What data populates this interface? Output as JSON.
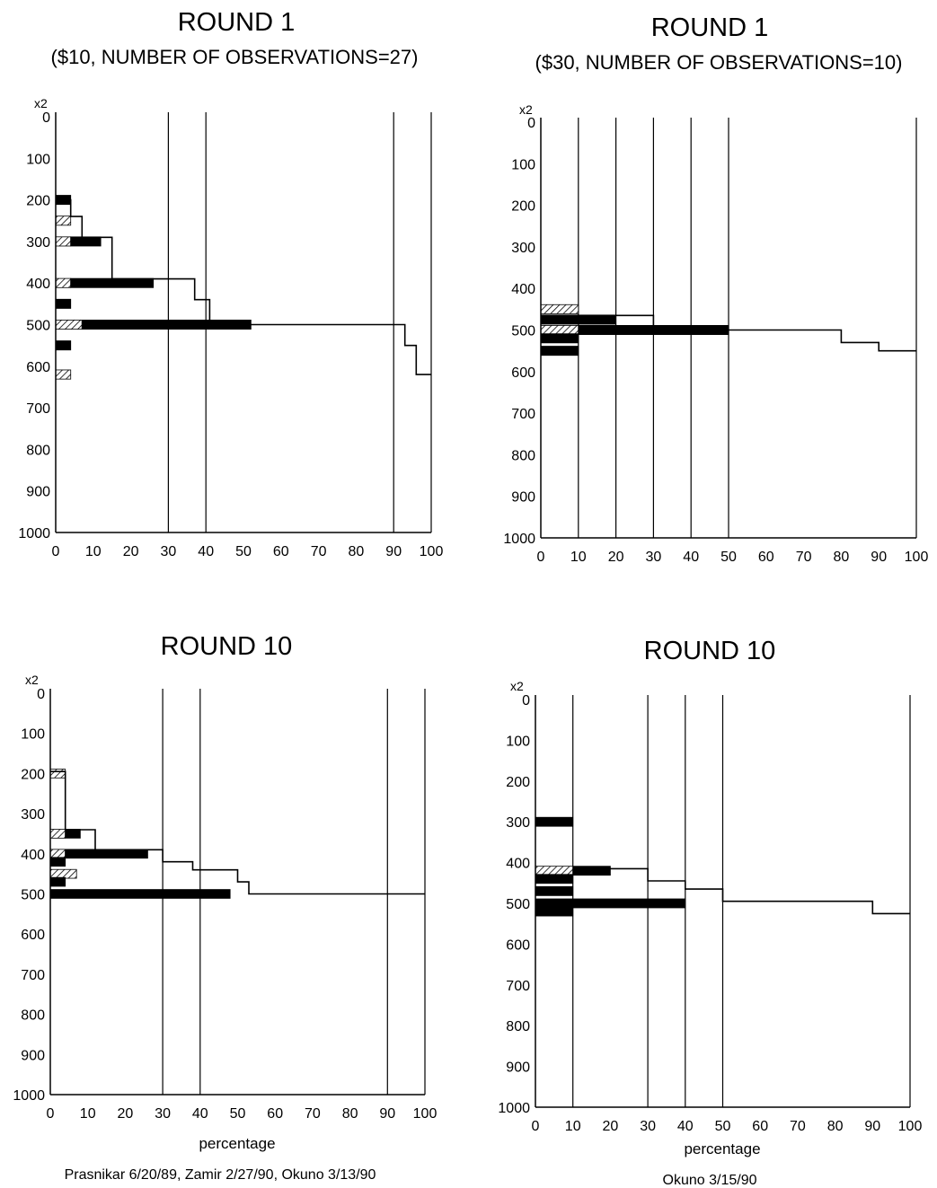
{
  "credits": {
    "left": "Prasnikar 6/20/89, Zamir 2/27/90, Okuno 3/13/90",
    "right": "Okuno 3/15/90"
  },
  "chart_data": [
    {
      "type": "bar",
      "title": "ROUND 1",
      "subtitle": "($10, NUMBER OF OBSERVATIONS=27)",
      "xlabel": "",
      "y_multiplier_label": "x2",
      "x_ticks": [
        "0",
        "10",
        "20",
        "30",
        "40",
        "50",
        "60",
        "70",
        "80",
        "90",
        "100"
      ],
      "y_ticks": [
        "0",
        "100",
        "200",
        "300",
        "400",
        "500",
        "600",
        "700",
        "800",
        "900",
        "1000"
      ],
      "xlim": [
        0,
        100
      ],
      "ylim": [
        0,
        1000
      ],
      "y_inverted": true,
      "vertical_gridlines": [
        30,
        40,
        90,
        100
      ],
      "offer_bars": [
        {
          "y": 200,
          "pct": 4,
          "style": "solid"
        },
        {
          "y": 250,
          "pct": 4,
          "style": "hatched"
        },
        {
          "y": 300,
          "pct": 4,
          "style": "hatched"
        },
        {
          "y": 300,
          "pct": 8,
          "style": "solid",
          "start": 4
        },
        {
          "y": 400,
          "pct": 4,
          "style": "hatched"
        },
        {
          "y": 400,
          "pct": 22,
          "style": "solid",
          "start": 4
        },
        {
          "y": 450,
          "pct": 4,
          "style": "solid"
        },
        {
          "y": 500,
          "pct": 7,
          "style": "hatched"
        },
        {
          "y": 500,
          "pct": 45,
          "style": "solid",
          "start": 7
        },
        {
          "y": 550,
          "pct": 4,
          "style": "solid"
        },
        {
          "y": 620,
          "pct": 4,
          "style": "hatched"
        }
      ],
      "step_line": [
        [
          0,
          200
        ],
        [
          4,
          200
        ],
        [
          4,
          240
        ],
        [
          7,
          240
        ],
        [
          7,
          290
        ],
        [
          15,
          290
        ],
        [
          15,
          390
        ],
        [
          37,
          390
        ],
        [
          37,
          440
        ],
        [
          41,
          440
        ],
        [
          41,
          500
        ],
        [
          93,
          500
        ],
        [
          93,
          550
        ],
        [
          96,
          550
        ],
        [
          96,
          620
        ],
        [
          100,
          620
        ]
      ]
    },
    {
      "type": "bar",
      "title": "ROUND 1",
      "subtitle": "($30, NUMBER OF OBSERVATIONS=10)",
      "xlabel": "",
      "y_multiplier_label": "x2",
      "x_ticks": [
        "0",
        "10",
        "20",
        "30",
        "40",
        "50",
        "60",
        "70",
        "80",
        "90",
        "100"
      ],
      "y_ticks": [
        "0",
        "100",
        "200",
        "300",
        "400",
        "500",
        "600",
        "700",
        "800",
        "900",
        "1000"
      ],
      "xlim": [
        0,
        100
      ],
      "ylim": [
        0,
        1000
      ],
      "y_inverted": true,
      "vertical_gridlines": [
        10,
        20,
        30,
        40,
        50,
        100
      ],
      "offer_bars": [
        {
          "y": 450,
          "pct": 10,
          "style": "hatched"
        },
        {
          "y": 475,
          "pct": 20,
          "style": "solid"
        },
        {
          "y": 500,
          "pct": 10,
          "style": "hatched"
        },
        {
          "y": 500,
          "pct": 40,
          "style": "solid",
          "start": 10
        },
        {
          "y": 520,
          "pct": 10,
          "style": "solid"
        },
        {
          "y": 550,
          "pct": 10,
          "style": "solid"
        }
      ],
      "step_line": [
        [
          10,
          465
        ],
        [
          30,
          465
        ],
        [
          30,
          500
        ],
        [
          80,
          500
        ],
        [
          80,
          530
        ],
        [
          90,
          530
        ],
        [
          90,
          550
        ],
        [
          100,
          550
        ]
      ]
    },
    {
      "type": "bar",
      "title": "ROUND 10",
      "subtitle": "",
      "xlabel": "percentage",
      "y_multiplier_label": "x2",
      "x_ticks": [
        "0",
        "10",
        "20",
        "30",
        "40",
        "50",
        "60",
        "70",
        "80",
        "90",
        "100"
      ],
      "y_ticks": [
        "0",
        "100",
        "200",
        "300",
        "400",
        "500",
        "600",
        "700",
        "800",
        "900",
        "1000"
      ],
      "xlim": [
        0,
        100
      ],
      "ylim": [
        0,
        1000
      ],
      "y_inverted": true,
      "vertical_gridlines": [
        30,
        40,
        90,
        100
      ],
      "offer_bars": [
        {
          "y": 200,
          "pct": 4,
          "style": "hatched"
        },
        {
          "y": 350,
          "pct": 4,
          "style": "hatched"
        },
        {
          "y": 350,
          "pct": 4,
          "style": "solid",
          "start": 4
        },
        {
          "y": 400,
          "pct": 4,
          "style": "hatched"
        },
        {
          "y": 400,
          "pct": 22,
          "style": "solid",
          "start": 4
        },
        {
          "y": 420,
          "pct": 4,
          "style": "solid"
        },
        {
          "y": 450,
          "pct": 7,
          "style": "hatched"
        },
        {
          "y": 470,
          "pct": 4,
          "style": "solid"
        },
        {
          "y": 500,
          "pct": 48,
          "style": "solid"
        }
      ],
      "step_line": [
        [
          0,
          195
        ],
        [
          4,
          195
        ],
        [
          4,
          340
        ],
        [
          12,
          340
        ],
        [
          12,
          390
        ],
        [
          30,
          390
        ],
        [
          30,
          420
        ],
        [
          38,
          420
        ],
        [
          38,
          440
        ],
        [
          50,
          440
        ],
        [
          50,
          470
        ],
        [
          53,
          470
        ],
        [
          53,
          500
        ],
        [
          100,
          500
        ]
      ]
    },
    {
      "type": "bar",
      "title": "ROUND 10",
      "subtitle": "",
      "xlabel": "percentage",
      "y_multiplier_label": "x2",
      "x_ticks": [
        "0",
        "10",
        "20",
        "30",
        "40",
        "50",
        "60",
        "70",
        "80",
        "90",
        "100"
      ],
      "y_ticks": [
        "0",
        "100",
        "200",
        "300",
        "400",
        "500",
        "600",
        "700",
        "800",
        "900",
        "1000"
      ],
      "xlim": [
        0,
        100
      ],
      "ylim": [
        0,
        1000
      ],
      "y_inverted": true,
      "vertical_gridlines": [
        10,
        30,
        40,
        50,
        100
      ],
      "offer_bars": [
        {
          "y": 300,
          "pct": 10,
          "style": "solid"
        },
        {
          "y": 420,
          "pct": 10,
          "style": "hatched"
        },
        {
          "y": 420,
          "pct": 10,
          "style": "solid",
          "start": 10
        },
        {
          "y": 440,
          "pct": 10,
          "style": "solid"
        },
        {
          "y": 470,
          "pct": 10,
          "style": "solid"
        },
        {
          "y": 500,
          "pct": 40,
          "style": "solid"
        },
        {
          "y": 520,
          "pct": 10,
          "style": "solid"
        }
      ],
      "step_line": [
        [
          10,
          415
        ],
        [
          30,
          415
        ],
        [
          30,
          445
        ],
        [
          40,
          445
        ],
        [
          40,
          465
        ],
        [
          50,
          465
        ],
        [
          50,
          495
        ],
        [
          90,
          495
        ],
        [
          90,
          525
        ],
        [
          100,
          525
        ]
      ]
    }
  ]
}
